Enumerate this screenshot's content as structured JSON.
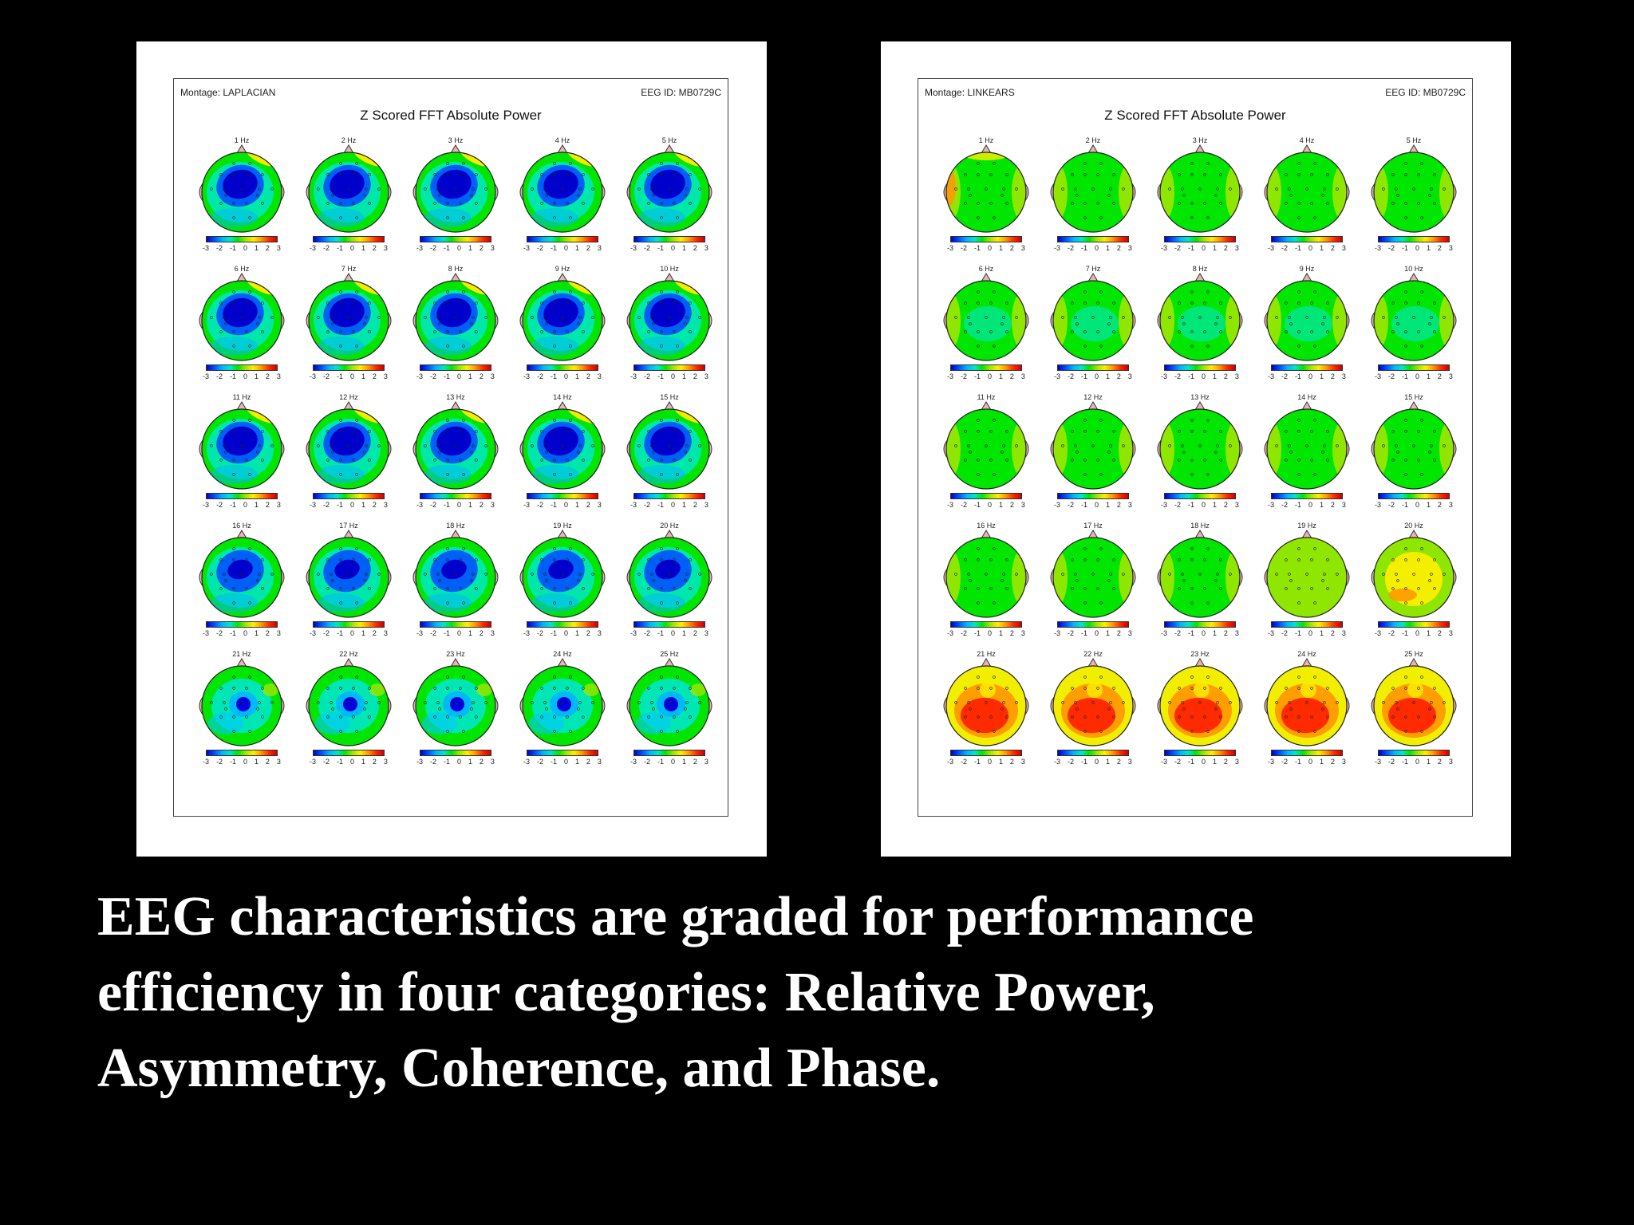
{
  "figures": [
    {
      "montage": "Montage:  LAPLACIAN",
      "eeg_id": "EEG ID:  MB0729C",
      "title": "Z Scored FFT Absolute Power",
      "scheme": "laplacian"
    },
    {
      "montage": "Montage:  LINKEARS",
      "eeg_id": "EEG ID:  MB0729C",
      "title": "Z Scored FFT Absolute Power",
      "scheme": "linkears"
    }
  ],
  "frequencies": [
    "1 Hz",
    "2 Hz",
    "3 Hz",
    "4 Hz",
    "5 Hz",
    "6 Hz",
    "7 Hz",
    "8 Hz",
    "9 Hz",
    "10 Hz",
    "11 Hz",
    "12 Hz",
    "13 Hz",
    "14 Hz",
    "15 Hz",
    "16 Hz",
    "17 Hz",
    "18 Hz",
    "19 Hz",
    "20 Hz",
    "21 Hz",
    "22 Hz",
    "23 Hz",
    "24 Hz",
    "25 Hz"
  ],
  "colorbar_ticks": [
    "-3",
    "-2",
    "-1",
    "0",
    "1",
    "2",
    "3"
  ],
  "colors": {
    "background": "#000000",
    "panel": "#ffffff",
    "ear": "#e8b4b4",
    "scalp_base": "#00e600"
  },
  "caption_lines": [
    " EEG characteristics are graded for performance",
    "efficiency in four categories: Relative Power,",
    "Asymmetry, Coherence, and Phase."
  ]
}
